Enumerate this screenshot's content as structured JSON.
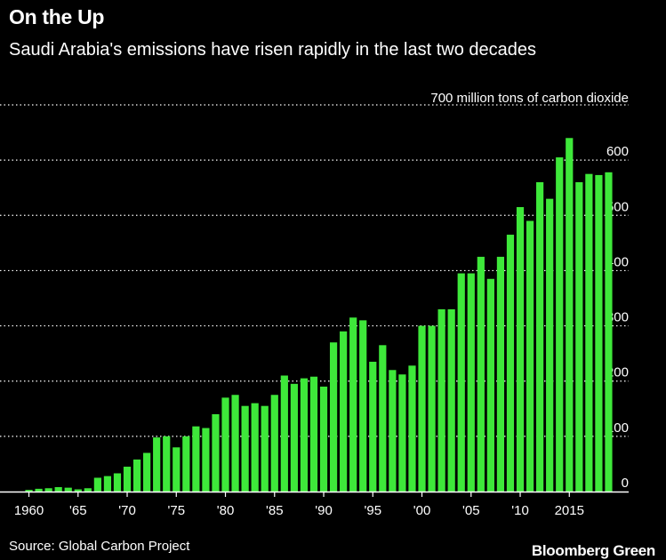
{
  "header": {
    "title": "On the Up",
    "subtitle": "Saudi Arabia's emissions have risen rapidly in the last two decades"
  },
  "footer": {
    "source": "Source: Global Carbon Project",
    "brand": "Bloomberg Green"
  },
  "colors": {
    "bar": "#3ee83a",
    "background": "#000000",
    "text": "#ffffff"
  },
  "chart_data": {
    "type": "bar",
    "title": "On the Up",
    "subtitle": "Saudi Arabia's emissions have risen rapidly in the last two decades",
    "ylabel": "million tons of carbon dioxide",
    "ylim": [
      0,
      700
    ],
    "yticks": [
      0,
      100,
      200,
      300,
      400,
      500,
      600,
      700
    ],
    "x_tick_labels": [
      {
        "year": 1960,
        "label": "1960"
      },
      {
        "year": 1965,
        "label": "'65"
      },
      {
        "year": 1970,
        "label": "'70"
      },
      {
        "year": 1975,
        "label": "'75"
      },
      {
        "year": 1980,
        "label": "'80"
      },
      {
        "year": 1985,
        "label": "'85"
      },
      {
        "year": 1990,
        "label": "'90"
      },
      {
        "year": 1995,
        "label": "'95"
      },
      {
        "year": 2000,
        "label": "'00"
      },
      {
        "year": 2005,
        "label": "'05"
      },
      {
        "year": 2010,
        "label": "'10"
      },
      {
        "year": 2015,
        "label": "2015"
      }
    ],
    "categories": [
      1960,
      1961,
      1962,
      1963,
      1964,
      1965,
      1966,
      1967,
      1968,
      1969,
      1970,
      1971,
      1972,
      1973,
      1974,
      1975,
      1976,
      1977,
      1978,
      1979,
      1980,
      1981,
      1982,
      1983,
      1984,
      1985,
      1986,
      1987,
      1988,
      1989,
      1990,
      1991,
      1992,
      1993,
      1994,
      1995,
      1996,
      1997,
      1998,
      1999,
      2000,
      2001,
      2002,
      2003,
      2004,
      2005,
      2006,
      2007,
      2008,
      2009,
      2010,
      2011,
      2012,
      2013,
      2014,
      2015,
      2016,
      2017,
      2018,
      2019
    ],
    "values": [
      3,
      5,
      6,
      8,
      7,
      4,
      6,
      25,
      28,
      33,
      45,
      58,
      70,
      98,
      100,
      80,
      100,
      118,
      115,
      140,
      170,
      175,
      155,
      160,
      155,
      175,
      210,
      195,
      205,
      208,
      190,
      270,
      290,
      315,
      310,
      235,
      265,
      220,
      212,
      228,
      300,
      300,
      330,
      330,
      395,
      395,
      425,
      385,
      425,
      465,
      515,
      490,
      560,
      530,
      605,
      640,
      560,
      575,
      573,
      578
    ]
  }
}
